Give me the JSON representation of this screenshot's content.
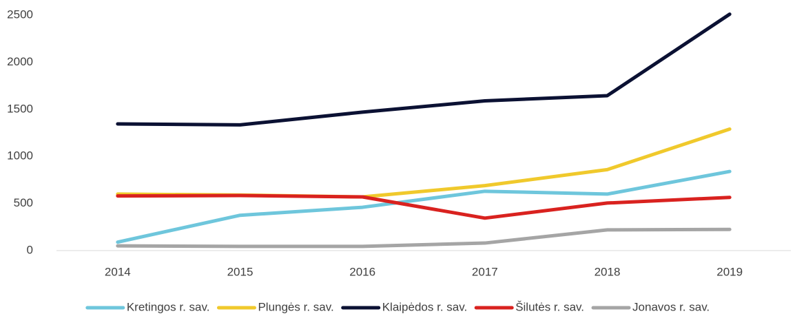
{
  "chart_data": {
    "type": "line",
    "categories": [
      "2014",
      "2015",
      "2016",
      "2017",
      "2018",
      "2019"
    ],
    "series": [
      {
        "name": "Kretingos r. sav.",
        "color": "#6ec6dc",
        "values": [
          90,
          375,
          460,
          630,
          600,
          840
        ]
      },
      {
        "name": "Plungės r. sav.",
        "color": "#f0c92c",
        "values": [
          600,
          590,
          570,
          690,
          860,
          1290
        ]
      },
      {
        "name": "Klaipėdos r. sav.",
        "color": "#0b1133",
        "values": [
          1345,
          1335,
          1470,
          1590,
          1645,
          2510
        ]
      },
      {
        "name": "Šilutės r. sav.",
        "color": "#d9221f",
        "values": [
          580,
          585,
          570,
          345,
          505,
          565
        ]
      },
      {
        "name": "Jonavos r. sav.",
        "color": "#a5a5a5",
        "values": [
          50,
          45,
          45,
          80,
          220,
          225
        ]
      }
    ],
    "ylim": [
      0,
      2500
    ],
    "yticks": [
      0,
      500,
      1000,
      1500,
      2000,
      2500
    ],
    "grid": false,
    "legend": "bottom"
  }
}
